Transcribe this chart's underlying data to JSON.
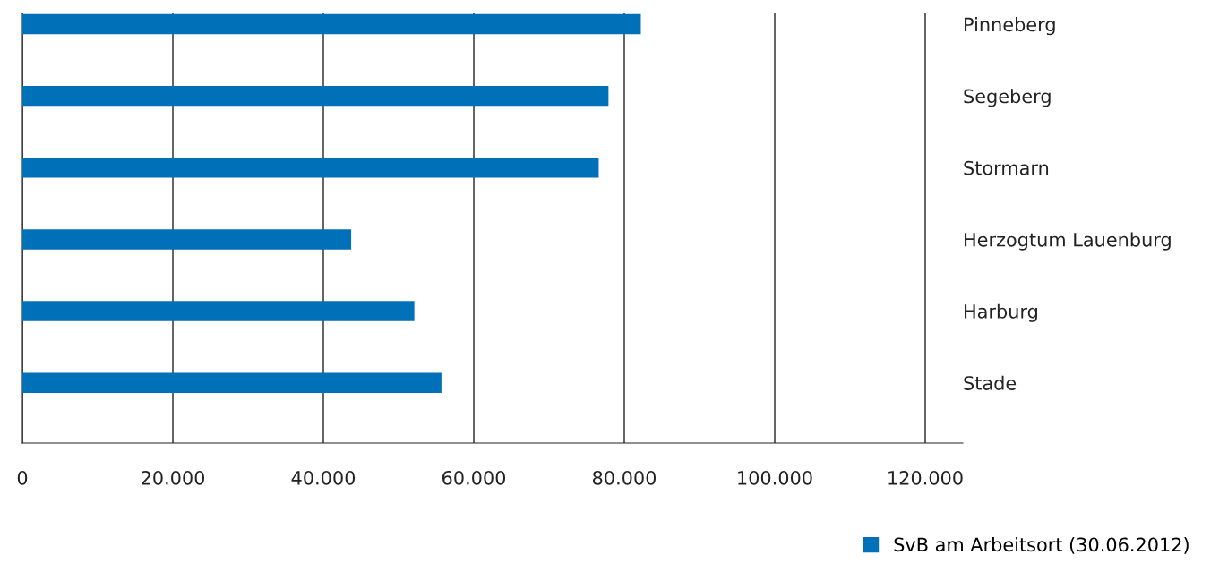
{
  "chart_data": {
    "type": "bar",
    "orientation": "horizontal",
    "categories": [
      "Pinneberg",
      "Segeberg",
      "Stormarn",
      "Herzogtum Lauenburg",
      "Harburg",
      "Stade"
    ],
    "series": [
      {
        "name": "SvB am Arbeitsort (30.06.2012)",
        "color": "#0070b8",
        "values": [
          82200,
          77900,
          76600,
          43700,
          52100,
          55700
        ]
      }
    ],
    "xlim": [
      0,
      125000
    ],
    "xticks": [
      0,
      {
        "value": 20000,
        "label": "20.000"
      },
      {
        "value": 40000,
        "label": "40.000"
      },
      {
        "value": 60000,
        "label": "60.000"
      },
      {
        "value": 80000,
        "label": "80.000"
      },
      {
        "value": 100000,
        "label": "100.000"
      },
      {
        "value": 120000,
        "label": "120.000"
      }
    ],
    "grid": "x",
    "legend": "bottom right"
  }
}
